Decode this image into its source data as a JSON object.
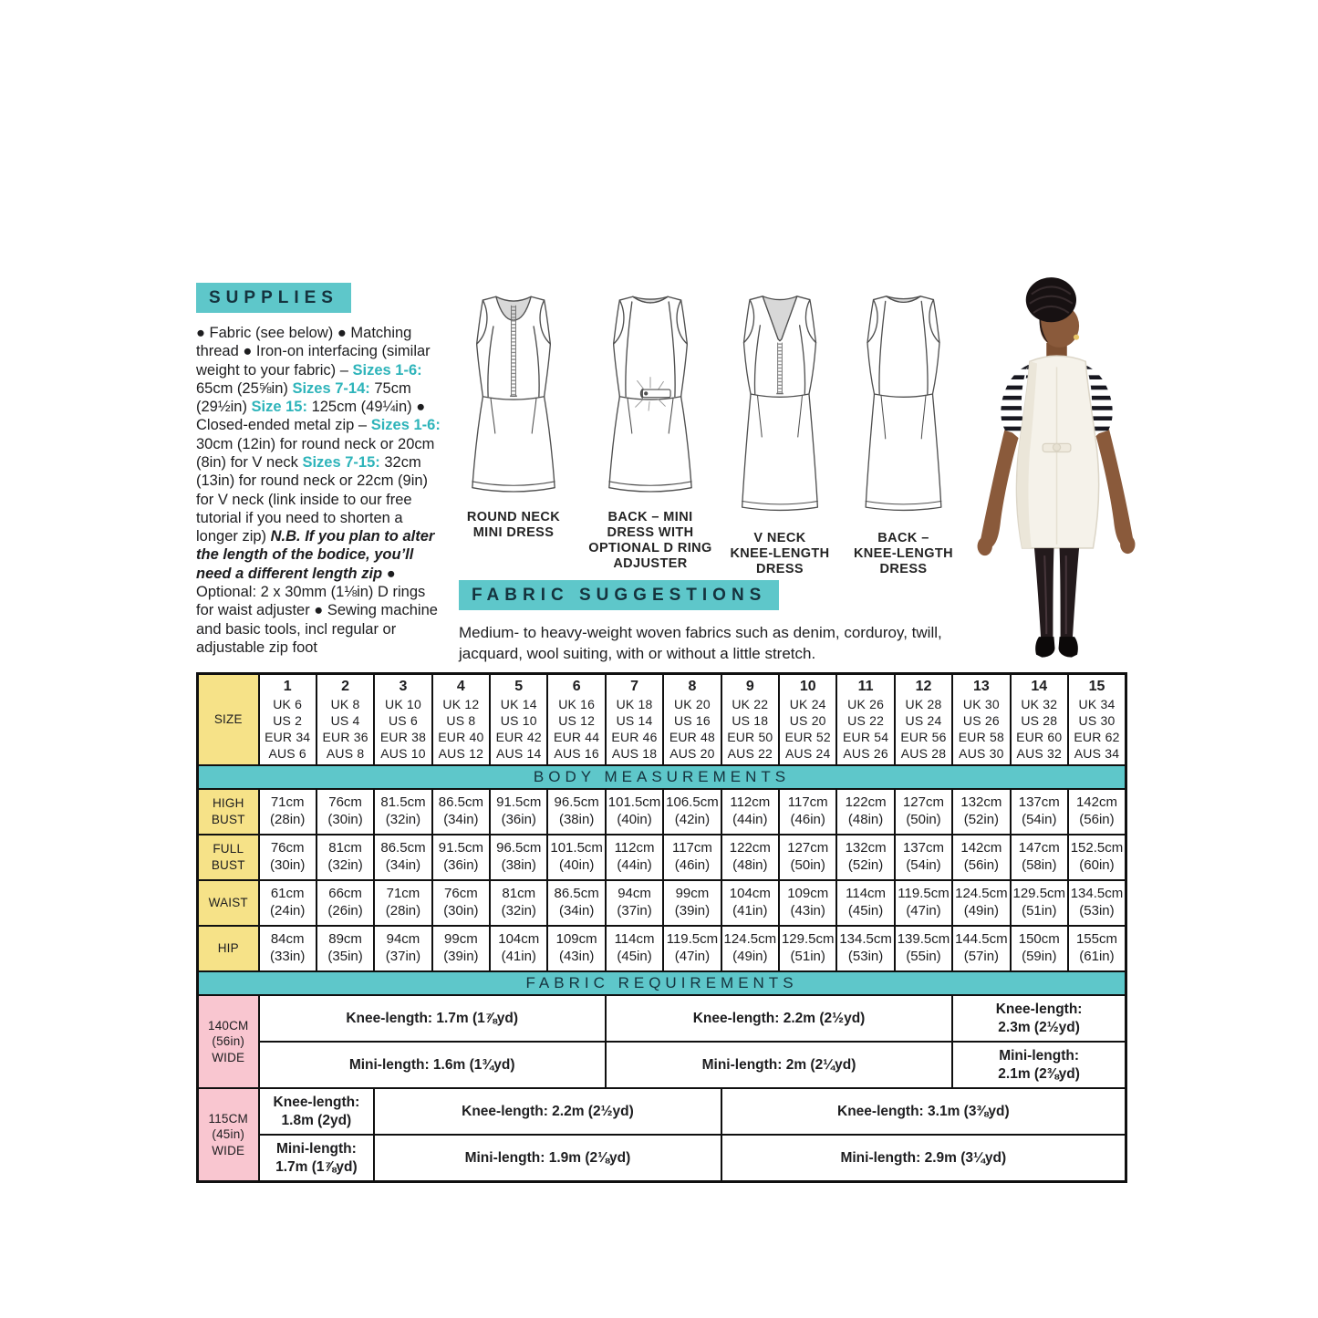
{
  "supplies": {
    "title": "SUPPLIES",
    "runs": [
      {
        "text": "● Fabric (see below) ● Matching thread ● Iron-on interfacing (similar weight to your fabric) – ",
        "style": "normal"
      },
      {
        "text": "Sizes 1-6:",
        "style": "teal"
      },
      {
        "text": " 65cm (25⅝in) ",
        "style": "normal"
      },
      {
        "text": "Sizes 7-14:",
        "style": "teal"
      },
      {
        "text": " 75cm (29½in) ",
        "style": "normal"
      },
      {
        "text": "Size 15:",
        "style": "teal"
      },
      {
        "text": " 125cm (49¼in) ● Closed-ended metal zip – ",
        "style": "normal"
      },
      {
        "text": "Sizes 1-6:",
        "style": "teal"
      },
      {
        "text": " 30cm (12in) for round neck or 20cm (8in) for V neck ",
        "style": "normal"
      },
      {
        "text": "Sizes 7-15:",
        "style": "teal"
      },
      {
        "text": " 32cm (13in) for round neck or 22cm (9in) for V neck (link inside to our free tutorial if you need to shorten a longer zip) ",
        "style": "normal"
      },
      {
        "text": "N.B. If you plan to alter the length of the bodice, you’ll need a different length zip",
        "style": "bolditalic"
      },
      {
        "text": " ● Optional: 2 x 30mm (1⅛in) D rings for waist adjuster ● Sewing machine and basic tools, incl regular or adjustable zip foot",
        "style": "normal"
      }
    ]
  },
  "drawings": [
    {
      "caption": "ROUND NECK\nMINI DRESS"
    },
    {
      "caption": "BACK – MINI\nDRESS WITH\nOPTIONAL D RING\nADJUSTER"
    },
    {
      "caption": "V NECK\nKNEE-LENGTH\nDRESS"
    },
    {
      "caption": "BACK –\nKNEE-LENGTH\nDRESS"
    }
  ],
  "photo": {
    "description": "Back view of model wearing white pinafore dress over black-and-white striped tee, black tights and shoes"
  },
  "fabric_suggestions": {
    "title": "FABRIC SUGGESTIONS",
    "text": "Medium- to heavy-weight woven fabrics such as denim, corduroy, twill, jacquard, wool suiting, with or without a little stretch."
  },
  "size_table": {
    "size_label": "SIZE",
    "sizes": [
      {
        "num": "1",
        "uk": "UK 6",
        "us": "US 2",
        "eur": "EUR 34",
        "aus": "AUS 6"
      },
      {
        "num": "2",
        "uk": "UK 8",
        "us": "US 4",
        "eur": "EUR 36",
        "aus": "AUS 8"
      },
      {
        "num": "3",
        "uk": "UK 10",
        "us": "US 6",
        "eur": "EUR 38",
        "aus": "AUS 10"
      },
      {
        "num": "4",
        "uk": "UK 12",
        "us": "US 8",
        "eur": "EUR 40",
        "aus": "AUS 12"
      },
      {
        "num": "5",
        "uk": "UK 14",
        "us": "US 10",
        "eur": "EUR 42",
        "aus": "AUS 14"
      },
      {
        "num": "6",
        "uk": "UK 16",
        "us": "US 12",
        "eur": "EUR 44",
        "aus": "AUS 16"
      },
      {
        "num": "7",
        "uk": "UK 18",
        "us": "US 14",
        "eur": "EUR 46",
        "aus": "AUS 18"
      },
      {
        "num": "8",
        "uk": "UK 20",
        "us": "US 16",
        "eur": "EUR 48",
        "aus": "AUS 20"
      },
      {
        "num": "9",
        "uk": "UK 22",
        "us": "US 18",
        "eur": "EUR 50",
        "aus": "AUS 22"
      },
      {
        "num": "10",
        "uk": "UK 24",
        "us": "US 20",
        "eur": "EUR 52",
        "aus": "AUS 24"
      },
      {
        "num": "11",
        "uk": "UK 26",
        "us": "US 22",
        "eur": "EUR 54",
        "aus": "AUS 26"
      },
      {
        "num": "12",
        "uk": "UK 28",
        "us": "US 24",
        "eur": "EUR 56",
        "aus": "AUS 28"
      },
      {
        "num": "13",
        "uk": "UK 30",
        "us": "US 26",
        "eur": "EUR 58",
        "aus": "AUS 30"
      },
      {
        "num": "14",
        "uk": "UK 32",
        "us": "US 28",
        "eur": "EUR 60",
        "aus": "AUS 32"
      },
      {
        "num": "15",
        "uk": "UK 34",
        "us": "US 30",
        "eur": "EUR 62",
        "aus": "AUS 34"
      }
    ],
    "body_measurements_label": "BODY MEASUREMENTS",
    "measurement_rows": [
      {
        "label": "HIGH\nBUST",
        "cells": [
          [
            "71cm",
            "(28in)"
          ],
          [
            "76cm",
            "(30in)"
          ],
          [
            "81.5cm",
            "(32in)"
          ],
          [
            "86.5cm",
            "(34in)"
          ],
          [
            "91.5cm",
            "(36in)"
          ],
          [
            "96.5cm",
            "(38in)"
          ],
          [
            "101.5cm",
            "(40in)"
          ],
          [
            "106.5cm",
            "(42in)"
          ],
          [
            "112cm",
            "(44in)"
          ],
          [
            "117cm",
            "(46in)"
          ],
          [
            "122cm",
            "(48in)"
          ],
          [
            "127cm",
            "(50in)"
          ],
          [
            "132cm",
            "(52in)"
          ],
          [
            "137cm",
            "(54in)"
          ],
          [
            "142cm",
            "(56in)"
          ]
        ]
      },
      {
        "label": "FULL\nBUST",
        "cells": [
          [
            "76cm",
            "(30in)"
          ],
          [
            "81cm",
            "(32in)"
          ],
          [
            "86.5cm",
            "(34in)"
          ],
          [
            "91.5cm",
            "(36in)"
          ],
          [
            "96.5cm",
            "(38in)"
          ],
          [
            "101.5cm",
            "(40in)"
          ],
          [
            "112cm",
            "(44in)"
          ],
          [
            "117cm",
            "(46in)"
          ],
          [
            "122cm",
            "(48in)"
          ],
          [
            "127cm",
            "(50in)"
          ],
          [
            "132cm",
            "(52in)"
          ],
          [
            "137cm",
            "(54in)"
          ],
          [
            "142cm",
            "(56in)"
          ],
          [
            "147cm",
            "(58in)"
          ],
          [
            "152.5cm",
            "(60in)"
          ]
        ]
      },
      {
        "label": "WAIST",
        "cells": [
          [
            "61cm",
            "(24in)"
          ],
          [
            "66cm",
            "(26in)"
          ],
          [
            "71cm",
            "(28in)"
          ],
          [
            "76cm",
            "(30in)"
          ],
          [
            "81cm",
            "(32in)"
          ],
          [
            "86.5cm",
            "(34in)"
          ],
          [
            "94cm",
            "(37in)"
          ],
          [
            "99cm",
            "(39in)"
          ],
          [
            "104cm",
            "(41in)"
          ],
          [
            "109cm",
            "(43in)"
          ],
          [
            "114cm",
            "(45in)"
          ],
          [
            "119.5cm",
            "(47in)"
          ],
          [
            "124.5cm",
            "(49in)"
          ],
          [
            "129.5cm",
            "(51in)"
          ],
          [
            "134.5cm",
            "(53in)"
          ]
        ]
      },
      {
        "label": "HIP",
        "cells": [
          [
            "84cm",
            "(33in)"
          ],
          [
            "89cm",
            "(35in)"
          ],
          [
            "94cm",
            "(37in)"
          ],
          [
            "99cm",
            "(39in)"
          ],
          [
            "104cm",
            "(41in)"
          ],
          [
            "109cm",
            "(43in)"
          ],
          [
            "114cm",
            "(45in)"
          ],
          [
            "119.5cm",
            "(47in)"
          ],
          [
            "124.5cm",
            "(49in)"
          ],
          [
            "129.5cm",
            "(51in)"
          ],
          [
            "134.5cm",
            "(53in)"
          ],
          [
            "139.5cm",
            "(55in)"
          ],
          [
            "144.5cm",
            "(57in)"
          ],
          [
            "150cm",
            "(59in)"
          ],
          [
            "155cm",
            "(61in)"
          ]
        ]
      }
    ],
    "fabric_requirements_label": "FABRIC REQUIREMENTS",
    "fabric_groups": [
      {
        "width_label": "140CM\n(56in)\nWIDE",
        "rows": [
          {
            "cells": [
              {
                "span": 6,
                "lines": [
                  "Knee-length: 1.7m (1⅞yd)"
                ]
              },
              {
                "span": 6,
                "lines": [
                  "Knee-length: 2.2m (2½yd)"
                ]
              },
              {
                "span": 3,
                "lines": [
                  "Knee-length:",
                  "2.3m (2½yd)"
                ]
              }
            ]
          },
          {
            "cells": [
              {
                "span": 6,
                "lines": [
                  "Mini-length: 1.6m (1¾yd)"
                ]
              },
              {
                "span": 6,
                "lines": [
                  "Mini-length: 2m (2¼yd)"
                ]
              },
              {
                "span": 3,
                "lines": [
                  "Mini-length:",
                  "2.1m (2⅜yd)"
                ]
              }
            ]
          }
        ]
      },
      {
        "width_label": "115CM\n(45in)\nWIDE",
        "rows": [
          {
            "cells": [
              {
                "span": 2,
                "lines": [
                  "Knee-length:",
                  "1.8m (2yd)"
                ]
              },
              {
                "span": 6,
                "lines": [
                  "Knee-length: 2.2m (2½yd)"
                ]
              },
              {
                "span": 7,
                "lines": [
                  "Knee-length: 3.1m (3⅜yd)"
                ]
              }
            ]
          },
          {
            "cells": [
              {
                "span": 2,
                "lines": [
                  "Mini-length:",
                  "1.7m (1⅞yd)"
                ]
              },
              {
                "span": 6,
                "lines": [
                  "Mini-length: 1.9m (2⅛yd)"
                ]
              },
              {
                "span": 7,
                "lines": [
                  "Mini-length: 2.9m (3¼yd)"
                ]
              }
            ]
          }
        ]
      }
    ]
  },
  "colors": {
    "teal_header": "#5ec7ca",
    "teal_text": "#2eb4ba",
    "yellow_cell": "#f6e288",
    "pink_cell": "#f9c6d0"
  }
}
